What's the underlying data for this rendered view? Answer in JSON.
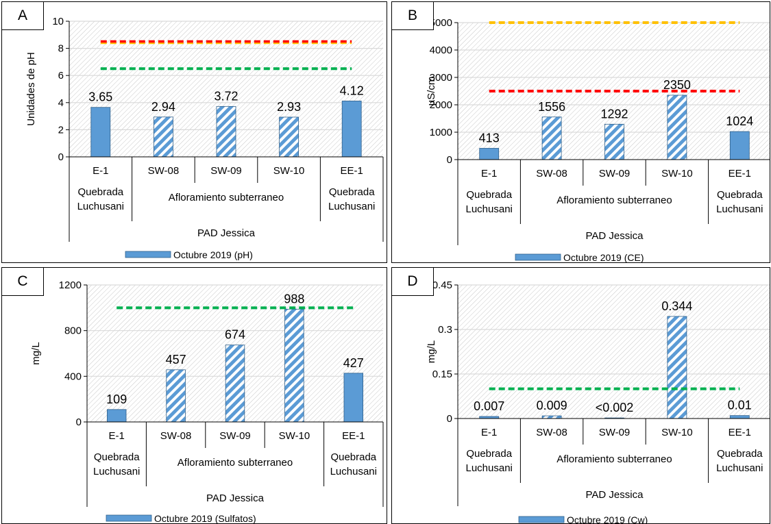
{
  "chart_data": [
    {
      "id": "A",
      "type": "bar",
      "panel_label": "A",
      "ylabel": "Unidades de pH",
      "ylim": [
        0,
        10
      ],
      "yticks": [
        "0",
        "2",
        "4",
        "6",
        "8",
        "10"
      ],
      "ytick_values": [
        0,
        2,
        4,
        6,
        8,
        10
      ],
      "categories": [
        "E-1",
        "SW-08",
        "SW-09",
        "SW-10",
        "EE-1"
      ],
      "values": [
        3.65,
        2.94,
        3.72,
        2.93,
        4.12
      ],
      "value_labels": [
        "3.65",
        "2.94",
        "3.72",
        "2.93",
        "4.12"
      ],
      "bar_style": [
        "solid",
        "hatched",
        "hatched",
        "hatched",
        "solid"
      ],
      "groups": [
        {
          "label_lines": [
            "Quebrada",
            "Luchusani"
          ],
          "start": 0,
          "end": 0
        },
        {
          "label_lines": [
            "Afloramiento subterraneo"
          ],
          "start": 1,
          "end": 3
        },
        {
          "label_lines": [
            "Quebrada",
            "Luchusani"
          ],
          "start": 4,
          "end": 4
        }
      ],
      "supergroup": "PAD Jessica",
      "legend": "Octubre 2019 (pH)",
      "reference_lines": [
        {
          "value": 8.5,
          "color": "#ff0000",
          "stripe": "#ffc000"
        },
        {
          "value": 6.5,
          "color": "#00b050"
        }
      ],
      "grid": true,
      "bar_color": "#5b9bd5"
    },
    {
      "id": "B",
      "type": "bar",
      "panel_label": "B",
      "ylabel": "µS/cm",
      "ylim": [
        0,
        5000
      ],
      "yticks": [
        "0",
        "1000",
        "2000",
        "3000",
        "4000",
        "5000"
      ],
      "ytick_values": [
        0,
        1000,
        2000,
        3000,
        4000,
        5000
      ],
      "categories": [
        "E-1",
        "SW-08",
        "SW-09",
        "SW-10",
        "EE-1"
      ],
      "values": [
        413,
        1556,
        1292,
        2350,
        1024
      ],
      "value_labels": [
        "413",
        "1556",
        "1292",
        "2350",
        "1024"
      ],
      "bar_style": [
        "solid",
        "hatched",
        "hatched",
        "hatched",
        "solid"
      ],
      "groups": [
        {
          "label_lines": [
            "Quebrada",
            "Luchusani"
          ],
          "start": 0,
          "end": 0
        },
        {
          "label_lines": [
            "Afloramiento subterraneo"
          ],
          "start": 1,
          "end": 3
        },
        {
          "label_lines": [
            "Quebrada",
            "Luchusani"
          ],
          "start": 4,
          "end": 4
        }
      ],
      "supergroup": "PAD Jessica",
      "legend": "Octubre 2019 (CE)",
      "reference_lines": [
        {
          "value": 5000,
          "color": "#ffc000"
        },
        {
          "value": 2500,
          "color": "#ff0000"
        }
      ],
      "grid": true,
      "bar_color": "#5b9bd5"
    },
    {
      "id": "C",
      "type": "bar",
      "panel_label": "C",
      "ylabel": "mg/L",
      "ylim": [
        0,
        1200
      ],
      "yticks": [
        "0",
        "400",
        "800",
        "1200"
      ],
      "ytick_values": [
        0,
        400,
        800,
        1200
      ],
      "categories": [
        "E-1",
        "SW-08",
        "SW-09",
        "SW-10",
        "EE-1"
      ],
      "values": [
        109,
        457,
        674,
        988,
        427
      ],
      "value_labels": [
        "109",
        "457",
        "674",
        "988",
        "427"
      ],
      "bar_style": [
        "solid",
        "hatched",
        "hatched",
        "hatched",
        "solid"
      ],
      "groups": [
        {
          "label_lines": [
            "Quebrada",
            "Luchusani"
          ],
          "start": 0,
          "end": 0
        },
        {
          "label_lines": [
            "Afloramiento subterraneo"
          ],
          "start": 1,
          "end": 3
        },
        {
          "label_lines": [
            "Quebrada",
            "Luchusani"
          ],
          "start": 4,
          "end": 4
        }
      ],
      "supergroup": "PAD Jessica",
      "legend": "Octubre 2019 (Sulfatos)",
      "reference_lines": [
        {
          "value": 1000,
          "color": "#00b050"
        }
      ],
      "grid": true,
      "bar_color": "#5b9bd5"
    },
    {
      "id": "D",
      "type": "bar",
      "panel_label": "D",
      "ylabel": "mg/L",
      "ylim": [
        0,
        0.45
      ],
      "yticks": [
        "0",
        "0.15",
        "0.3",
        "0.45"
      ],
      "ytick_values": [
        0,
        0.15,
        0.3,
        0.45
      ],
      "categories": [
        "E-1",
        "SW-08",
        "SW-09",
        "SW-10",
        "EE-1"
      ],
      "values": [
        0.007,
        0.009,
        0.002,
        0.344,
        0.01
      ],
      "value_labels": [
        "0.007",
        "0.009",
        "<0.002",
        "0.344",
        "0.01"
      ],
      "bar_style": [
        "solid",
        "hatched",
        "hatched",
        "hatched",
        "solid"
      ],
      "groups": [
        {
          "label_lines": [
            "Quebrada",
            "Luchusani"
          ],
          "start": 0,
          "end": 0
        },
        {
          "label_lines": [
            "Afloramiento subterraneo"
          ],
          "start": 1,
          "end": 3
        },
        {
          "label_lines": [
            "Quebrada",
            "Luchusani"
          ],
          "start": 4,
          "end": 4
        }
      ],
      "supergroup": "PAD Jessica",
      "legend": "Octubre 2019 (Cw)",
      "reference_lines": [
        {
          "value": 0.1,
          "color": "#00b050"
        }
      ],
      "grid": true,
      "bar_color": "#5b9bd5"
    }
  ]
}
